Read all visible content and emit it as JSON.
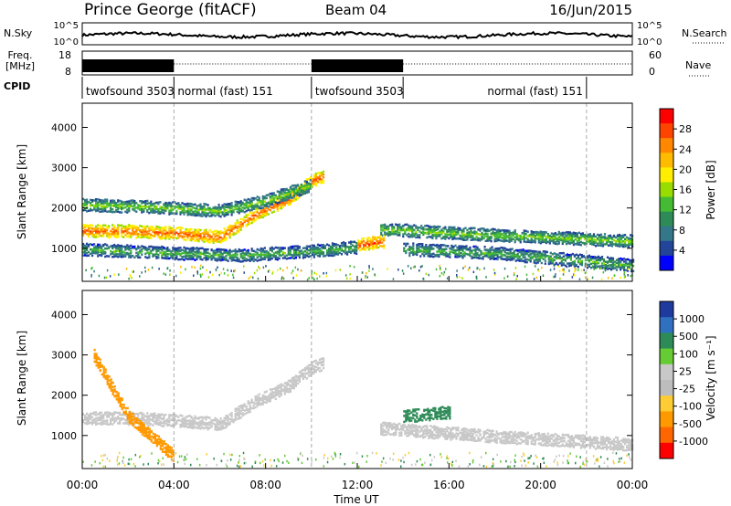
{
  "header": {
    "site": "Prince George (fitACF)",
    "beam": "Beam 04",
    "date": "16/Jun/2015"
  },
  "summary_labels": {
    "nsky": "N.Sky",
    "nsky_ticks": [
      "10^5",
      "10^0"
    ],
    "nsearch": "N.Search",
    "nsearch_ticks": [
      "10^5",
      "10^0"
    ],
    "freq": "Freq.",
    "freq_unit": "[MHz]",
    "freq_ticks": [
      "18",
      "8"
    ],
    "nave": "Nave",
    "nave_ticks": [
      "60",
      "0"
    ],
    "cpid": "CPID"
  },
  "cpid_segments": [
    {
      "label": "twofsound 3503",
      "start_hour": 0,
      "end_hour": 4
    },
    {
      "label": "normal (fast) 151",
      "start_hour": 4,
      "end_hour": 10
    },
    {
      "label": "twofsound 3503",
      "start_hour": 10,
      "end_hour": 14
    },
    {
      "label": "normal (fast) 151",
      "start_hour": 14,
      "end_hour": 22
    }
  ],
  "panels": {
    "ylabel": "Slant Range [km]",
    "yticks": [
      "4000",
      "3000",
      "2000",
      "1000"
    ],
    "xlabel": "Time UT",
    "xticks": [
      "00:00",
      "04:00",
      "08:00",
      "12:00",
      "16:00",
      "20:00",
      "00:00"
    ]
  },
  "power_scale": {
    "label": "Power [dB]",
    "ticks": [
      "28",
      "24",
      "20",
      "16",
      "12",
      "8",
      "4"
    ],
    "colors": [
      "#ff0000",
      "#ff4400",
      "#ff8800",
      "#ffbb00",
      "#ffee00",
      "#99dd00",
      "#44bb33",
      "#2e8b57",
      "#337788",
      "#224499",
      "#0000ff"
    ]
  },
  "velocity_scale": {
    "label": "Velocity [m s⁻¹]",
    "ticks": [
      "1000",
      "500",
      "100",
      "25",
      "-25",
      "-100",
      "-500",
      "-1000"
    ],
    "colors": [
      "#1f3a9e",
      "#3070c0",
      "#2e8b57",
      "#66cc33",
      "#c8c8c8",
      "#bdbdbd",
      "#ffcc33",
      "#ff9900",
      "#ff6600",
      "#ff0000"
    ]
  },
  "chart_data": [
    {
      "type": "heatmap",
      "title": "Power",
      "xlabel": "Time UT",
      "ylabel": "Slant Range [km]",
      "xlim": [
        0,
        24
      ],
      "ylim": [
        180,
        4600
      ],
      "colorbar": "Power [dB]",
      "bands": [
        {
          "t": [
            0,
            2,
            4,
            6,
            7.5,
            9,
            10,
            10.5
          ],
          "r": [
            1450,
            1450,
            1400,
            1300,
            1850,
            2250,
            2700,
            2800
          ],
          "power_db": 26
        },
        {
          "t": [
            0,
            3,
            6,
            8,
            10
          ],
          "r": [
            2100,
            2050,
            1950,
            2200,
            2600
          ],
          "power_db": 14
        },
        {
          "t": [
            0,
            4,
            7,
            10,
            12
          ],
          "r": [
            1000,
            900,
            850,
            950,
            1050
          ],
          "power_db": 12
        },
        {
          "t": [
            13,
            16,
            20,
            24
          ],
          "r": [
            1500,
            1400,
            1300,
            1200
          ],
          "power_db": 14
        },
        {
          "t": [
            14,
            18,
            22,
            24
          ],
          "r": [
            1000,
            900,
            700,
            600
          ],
          "power_db": 12
        },
        {
          "t": [
            12,
            13.2
          ],
          "r": [
            1100,
            1200
          ],
          "power_db": 27
        }
      ]
    },
    {
      "type": "heatmap",
      "title": "Velocity",
      "xlabel": "Time UT",
      "ylabel": "Slant Range [km]",
      "xlim": [
        0,
        24
      ],
      "ylim": [
        180,
        4600
      ],
      "colorbar": "Velocity [m s-1]",
      "bands": [
        {
          "t": [
            0,
            2,
            4,
            6,
            7.5,
            9,
            10,
            10.5
          ],
          "r": [
            1450,
            1450,
            1400,
            1300,
            1850,
            2250,
            2700,
            2800
          ],
          "velocity": 0
        },
        {
          "t": [
            0.5,
            2,
            4
          ],
          "r": [
            3000,
            1500,
            500
          ],
          "velocity": -300
        },
        {
          "t": [
            14,
            16
          ],
          "r": [
            1500,
            1600
          ],
          "velocity": 300
        },
        {
          "t": [
            13,
            18,
            24
          ],
          "r": [
            1200,
            1000,
            800
          ],
          "velocity": 0
        }
      ]
    }
  ]
}
